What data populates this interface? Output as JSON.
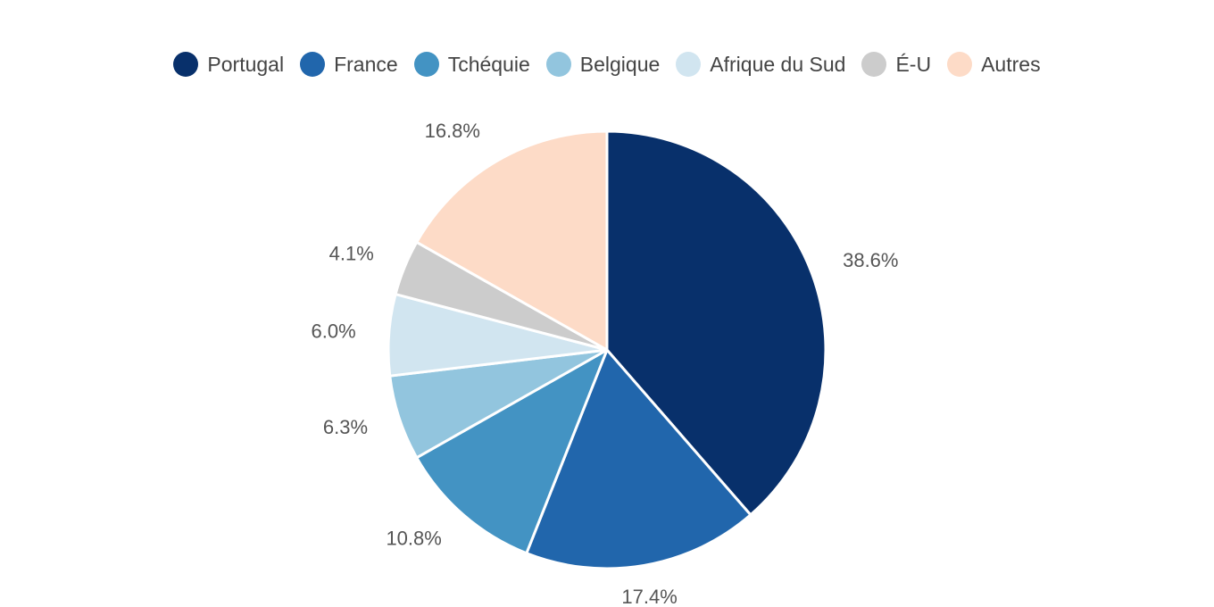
{
  "chart_data": {
    "type": "pie",
    "title": "",
    "legend_position": "top",
    "slices": [
      {
        "name": "Portugal",
        "value": 38.6,
        "label": "38.6%",
        "color": "#08306b"
      },
      {
        "name": "France",
        "value": 17.4,
        "label": "17.4%",
        "color": "#2166ac"
      },
      {
        "name": "Tchéquie",
        "value": 10.8,
        "label": "10.8%",
        "color": "#4393c3"
      },
      {
        "name": "Belgique",
        "value": 6.3,
        "label": "6.3%",
        "color": "#92c5de"
      },
      {
        "name": "Afrique du Sud",
        "value": 6.0,
        "label": "6.0%",
        "color": "#d1e5f0"
      },
      {
        "name": "É-U",
        "value": 4.1,
        "label": "4.1%",
        "color": "#cccccc"
      },
      {
        "name": "Autres",
        "value": 16.8,
        "label": "16.8%",
        "color": "#fddbc7"
      }
    ]
  }
}
